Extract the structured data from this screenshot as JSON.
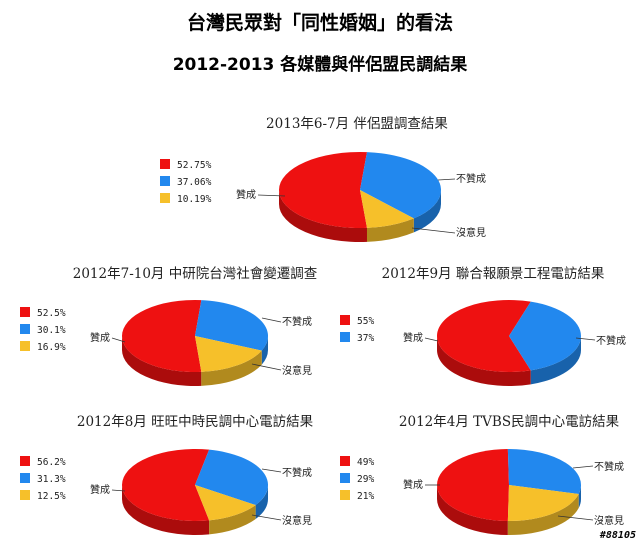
{
  "header": {
    "title": "台灣民眾對「同性婚姻」的看法",
    "subtitle": "2012-2013  各媒體與伴侶盟民調結果"
  },
  "watermark": "#88105",
  "colors": {
    "support": "#ee1111",
    "oppose": "#2288ee",
    "neutral": "#f6c02a"
  },
  "chart_data": [
    {
      "type": "pie",
      "title": "2013年6-7月  伴侶盟調查結果",
      "labels": [
        "贊成",
        "不贊成",
        "沒意見"
      ],
      "values": [
        52.75,
        37.06,
        10.19
      ],
      "legend": [
        "52.75%",
        "37.06%",
        "10.19%"
      ]
    },
    {
      "type": "pie",
      "title": "2012年7-10月  中研院台灣社會變遷調查",
      "labels": [
        "贊成",
        "不贊成",
        "沒意見"
      ],
      "values": [
        52.5,
        30.1,
        16.9
      ],
      "legend": [
        "52.5%",
        "30.1%",
        "16.9%"
      ]
    },
    {
      "type": "pie",
      "title": "2012年9月  聯合報願景工程電訪結果",
      "labels": [
        "贊成",
        "不贊成"
      ],
      "values": [
        55,
        37
      ],
      "legend": [
        "55%",
        "37%"
      ]
    },
    {
      "type": "pie",
      "title": "2012年8月  旺旺中時民調中心電訪結果",
      "labels": [
        "贊成",
        "不贊成",
        "沒意見"
      ],
      "values": [
        56.2,
        31.3,
        12.5
      ],
      "legend": [
        "56.2%",
        "31.3%",
        "12.5%"
      ]
    },
    {
      "type": "pie",
      "title": "2012年4月  TVBS民調中心電訪結果",
      "labels": [
        "贊成",
        "不贊成",
        "沒意見"
      ],
      "values": [
        49,
        29,
        21
      ],
      "legend": [
        "49%",
        "29%",
        "21%"
      ]
    }
  ]
}
